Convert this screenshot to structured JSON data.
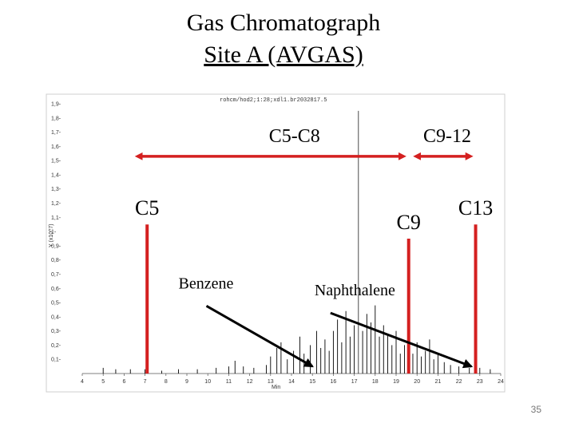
{
  "slide": {
    "title": "Gas Chromatograph",
    "subtitle": "Site A (AVGAS)",
    "page_number": "35"
  },
  "chart_data": {
    "type": "line",
    "header_text": "rohcm/hod2;1:28;xdl1.br2032817.5",
    "ylabel": "Y (x10^7)",
    "xlabel": "Min",
    "xlim": [
      4,
      24
    ],
    "ylim": [
      0,
      1.9
    ],
    "x_ticks": [
      4,
      5,
      6,
      7,
      8,
      9,
      10,
      11,
      12,
      13,
      14,
      15,
      16,
      17,
      18,
      19,
      20,
      21,
      22,
      23,
      24
    ],
    "y_ticks": [
      0.1,
      0.2,
      0.3,
      0.4,
      0.5,
      0.6,
      0.7,
      0.8,
      0.9,
      1.0,
      1.1,
      1.2,
      1.3,
      1.4,
      1.5,
      1.6,
      1.7,
      1.8,
      1.9
    ],
    "y_tick_labels": [
      "0,1-",
      "0,2-",
      "0,3-",
      "0,4-",
      "0,5-",
      "0,6-",
      "0,7-",
      "0,8-",
      "0,9-",
      "1-",
      "1,1-",
      "1,2-",
      "1,3-",
      "1,4-",
      "1,5-",
      "1,6-",
      "1,7-",
      "1,8-",
      "1,9-"
    ],
    "peaks": [
      {
        "x": 5.0,
        "y": 0.04
      },
      {
        "x": 5.6,
        "y": 0.03
      },
      {
        "x": 6.3,
        "y": 0.03
      },
      {
        "x": 7.0,
        "y": 0.03
      },
      {
        "x": 7.8,
        "y": 0.02
      },
      {
        "x": 8.6,
        "y": 0.03
      },
      {
        "x": 9.5,
        "y": 0.03
      },
      {
        "x": 10.4,
        "y": 0.04
      },
      {
        "x": 11.0,
        "y": 0.05
      },
      {
        "x": 11.3,
        "y": 0.09
      },
      {
        "x": 11.7,
        "y": 0.05
      },
      {
        "x": 12.2,
        "y": 0.04
      },
      {
        "x": 12.8,
        "y": 0.06
      },
      {
        "x": 13.0,
        "y": 0.12
      },
      {
        "x": 13.3,
        "y": 0.18
      },
      {
        "x": 13.5,
        "y": 0.22
      },
      {
        "x": 13.8,
        "y": 0.1
      },
      {
        "x": 14.1,
        "y": 0.16
      },
      {
        "x": 14.4,
        "y": 0.26
      },
      {
        "x": 14.6,
        "y": 0.14
      },
      {
        "x": 14.9,
        "y": 0.2
      },
      {
        "x": 15.2,
        "y": 0.3
      },
      {
        "x": 15.4,
        "y": 0.18
      },
      {
        "x": 15.6,
        "y": 0.24
      },
      {
        "x": 15.8,
        "y": 0.16
      },
      {
        "x": 16.0,
        "y": 0.3
      },
      {
        "x": 16.2,
        "y": 0.38
      },
      {
        "x": 16.4,
        "y": 0.22
      },
      {
        "x": 16.6,
        "y": 0.44
      },
      {
        "x": 16.8,
        "y": 0.26
      },
      {
        "x": 17.0,
        "y": 0.34
      },
      {
        "x": 17.2,
        "y": 1.85
      },
      {
        "x": 17.4,
        "y": 0.3
      },
      {
        "x": 17.6,
        "y": 0.42
      },
      {
        "x": 17.8,
        "y": 0.36
      },
      {
        "x": 18.0,
        "y": 0.48
      },
      {
        "x": 18.2,
        "y": 0.26
      },
      {
        "x": 18.4,
        "y": 0.34
      },
      {
        "x": 18.6,
        "y": 0.28
      },
      {
        "x": 18.8,
        "y": 0.2
      },
      {
        "x": 19.0,
        "y": 0.3
      },
      {
        "x": 19.2,
        "y": 0.14
      },
      {
        "x": 19.4,
        "y": 0.2
      },
      {
        "x": 19.6,
        "y": 0.1
      },
      {
        "x": 19.8,
        "y": 0.14
      },
      {
        "x": 20.0,
        "y": 0.22
      },
      {
        "x": 20.2,
        "y": 0.12
      },
      {
        "x": 20.4,
        "y": 0.16
      },
      {
        "x": 20.6,
        "y": 0.24
      },
      {
        "x": 20.8,
        "y": 0.1
      },
      {
        "x": 21.0,
        "y": 0.14
      },
      {
        "x": 21.3,
        "y": 0.08
      },
      {
        "x": 21.6,
        "y": 0.06
      },
      {
        "x": 22.0,
        "y": 0.05
      },
      {
        "x": 22.5,
        "y": 0.04
      },
      {
        "x": 23.0,
        "y": 0.04
      },
      {
        "x": 23.5,
        "y": 0.03
      }
    ],
    "markers": [
      {
        "label": "C5",
        "x": 7.1,
        "y_top": 1.05
      },
      {
        "label": "C9",
        "x": 19.6,
        "y_top": 0.95
      },
      {
        "label": "C13",
        "x": 22.8,
        "y_top": 1.05
      }
    ],
    "ranges": [
      {
        "label": "C5-C8",
        "x_start": 6.7,
        "x_end": 19.3,
        "y": 1.53
      },
      {
        "label": "C9-12",
        "x_start": 20.0,
        "x_end": 22.5,
        "y": 1.53
      }
    ],
    "annotations": [
      {
        "label": "Benzene",
        "label_x": 8.6,
        "label_y": 0.6,
        "target_x": 15.0,
        "target_y": 0.05
      },
      {
        "label": "Naphthalene",
        "label_x": 15.1,
        "label_y": 0.55,
        "target_x": 22.6,
        "target_y": 0.05
      }
    ],
    "colors": {
      "marker": "#d42020",
      "arrow": "#000000",
      "trace": "#000000"
    }
  }
}
